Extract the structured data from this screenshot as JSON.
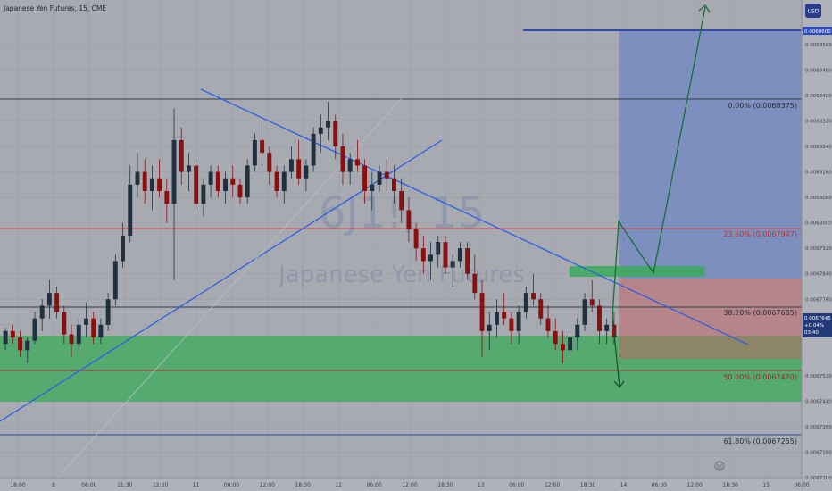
{
  "header": {
    "title": "Japanese Yen Futures, 15, CME",
    "currency_label": "USD"
  },
  "watermark": {
    "symbol": "6J1!, 15",
    "name": "Japanese Yen Futures"
  },
  "colors": {
    "background": "#a8aab2",
    "candle_up": "#20303f",
    "candle_down": "#8a1010",
    "trendline": "#2f5fe0",
    "fib_line": "#2e3a44",
    "green_zone": "#3aaa5a",
    "red_zone": "#c46060",
    "blue_zone": "#5a78c8",
    "projection": "#1e7a40"
  },
  "chart_data": {
    "type": "candlestick",
    "instrument": "Japanese Yen Futures",
    "timeframe": "15",
    "exchange": "CME",
    "ylim": [
      0.00672,
      0.00687
    ],
    "y_ticks": [
      "0.0068560",
      "0.0068480",
      "0.0068400",
      "0.0068320",
      "0.0068240",
      "0.0068160",
      "0.0068080",
      "0.0068000",
      "0.0067920",
      "0.0067840",
      "0.0067760",
      "0.0067680",
      "0.0067520",
      "0.0067440",
      "0.0067360",
      "0.0067280",
      "0.0067200"
    ],
    "x_ticks": [
      "18:00",
      "8",
      "06:00",
      "11:30",
      "12:00",
      "11",
      "06:00",
      "12:00",
      "18:30",
      "12",
      "06:00",
      "12:00",
      "18:30",
      "13",
      "06:00",
      "12:00",
      "18:30",
      "14",
      "06:00",
      "12:00",
      "18:30",
      "15",
      "06:00"
    ],
    "current_price": {
      "value": "0.0067645",
      "change": "+0.04%",
      "countdown": "03:40"
    },
    "target_price": "0.0068600",
    "fib_levels": [
      {
        "label": "0.00% (0.0068375)",
        "value": 0.0068375
      },
      {
        "label": "38.20% (0.0067685)",
        "value": 0.0067685
      },
      {
        "label": "50.00% (0.0067470)",
        "value": 0.006747
      },
      {
        "label": "61.80% (0.0067255)",
        "value": 0.0067255
      }
    ],
    "red_level": {
      "label": "23.60% (0.0067947)",
      "value": 0.0067947
    },
    "candles": [
      [
        0.006762,
        0.006767,
        0.00676,
        0.006766
      ],
      [
        0.006766,
        0.006768,
        0.006762,
        0.006764
      ],
      [
        0.006764,
        0.006766,
        0.006758,
        0.00676
      ],
      [
        0.00676,
        0.006764,
        0.006756,
        0.006763
      ],
      [
        0.006763,
        0.006772,
        0.006762,
        0.00677
      ],
      [
        0.00677,
        0.006776,
        0.006766,
        0.006774
      ],
      [
        0.006774,
        0.006782,
        0.00677,
        0.006778
      ],
      [
        0.006778,
        0.00678,
        0.00677,
        0.006772
      ],
      [
        0.006772,
        0.006774,
        0.006762,
        0.006765
      ],
      [
        0.006765,
        0.006768,
        0.006758,
        0.006762
      ],
      [
        0.006762,
        0.00677,
        0.00676,
        0.006768
      ],
      [
        0.006768,
        0.006775,
        0.006764,
        0.00677
      ],
      [
        0.00677,
        0.006772,
        0.006762,
        0.006764
      ],
      [
        0.006764,
        0.00677,
        0.006762,
        0.006768
      ],
      [
        0.006768,
        0.006778,
        0.006766,
        0.006776
      ],
      [
        0.006776,
        0.00679,
        0.006774,
        0.006788
      ],
      [
        0.006788,
        0.0068,
        0.006786,
        0.006796
      ],
      [
        0.006796,
        0.006818,
        0.006794,
        0.006812
      ],
      [
        0.006812,
        0.006822,
        0.006808,
        0.006816
      ],
      [
        0.006816,
        0.00682,
        0.006806,
        0.00681
      ],
      [
        0.00681,
        0.006818,
        0.006804,
        0.006814
      ],
      [
        0.006814,
        0.00682,
        0.006808,
        0.00681
      ],
      [
        0.00681,
        0.006814,
        0.0068,
        0.006806
      ],
      [
        0.006806,
        0.006836,
        0.006782,
        0.006826
      ],
      [
        0.006826,
        0.00683,
        0.006812,
        0.006816
      ],
      [
        0.006816,
        0.006822,
        0.00681,
        0.006818
      ],
      [
        0.006818,
        0.00682,
        0.006804,
        0.006806
      ],
      [
        0.006806,
        0.006814,
        0.006802,
        0.006812
      ],
      [
        0.006812,
        0.006818,
        0.006808,
        0.006816
      ],
      [
        0.006816,
        0.006818,
        0.006808,
        0.00681
      ],
      [
        0.00681,
        0.006816,
        0.006806,
        0.006814
      ],
      [
        0.006814,
        0.006818,
        0.006808,
        0.006812
      ],
      [
        0.006812,
        0.006814,
        0.006806,
        0.006808
      ],
      [
        0.006808,
        0.00682,
        0.006806,
        0.006818
      ],
      [
        0.006818,
        0.006828,
        0.006816,
        0.006826
      ],
      [
        0.006826,
        0.006832,
        0.006818,
        0.006822
      ],
      [
        0.006822,
        0.006824,
        0.006812,
        0.006816
      ],
      [
        0.006816,
        0.006818,
        0.006808,
        0.00681
      ],
      [
        0.00681,
        0.006818,
        0.006806,
        0.006816
      ],
      [
        0.006816,
        0.006824,
        0.006814,
        0.00682
      ],
      [
        0.00682,
        0.006826,
        0.006812,
        0.006814
      ],
      [
        0.006814,
        0.00682,
        0.00681,
        0.006818
      ],
      [
        0.006818,
        0.00683,
        0.006816,
        0.006828
      ],
      [
        0.006828,
        0.006834,
        0.006822,
        0.00683
      ],
      [
        0.00683,
        0.006838,
        0.006826,
        0.006832
      ],
      [
        0.006832,
        0.006834,
        0.00682,
        0.006824
      ],
      [
        0.006824,
        0.006828,
        0.006812,
        0.006816
      ],
      [
        0.006816,
        0.006822,
        0.006812,
        0.00682
      ],
      [
        0.00682,
        0.006826,
        0.006816,
        0.006818
      ],
      [
        0.006818,
        0.00682,
        0.006806,
        0.00681
      ],
      [
        0.00681,
        0.006816,
        0.006804,
        0.006812
      ],
      [
        0.006812,
        0.006818,
        0.00681,
        0.006816
      ],
      [
        0.006816,
        0.00682,
        0.00681,
        0.006814
      ],
      [
        0.006814,
        0.006818,
        0.006806,
        0.00681
      ],
      [
        0.00681,
        0.006814,
        0.0068,
        0.006804
      ],
      [
        0.006804,
        0.006808,
        0.006794,
        0.006798
      ],
      [
        0.006798,
        0.0068,
        0.006788,
        0.006792
      ],
      [
        0.006792,
        0.006796,
        0.006784,
        0.006788
      ],
      [
        0.006788,
        0.006794,
        0.006782,
        0.00679
      ],
      [
        0.00679,
        0.006796,
        0.006786,
        0.006794
      ],
      [
        0.006794,
        0.006796,
        0.006784,
        0.006786
      ],
      [
        0.006786,
        0.00679,
        0.00678,
        0.006788
      ],
      [
        0.006788,
        0.006794,
        0.006786,
        0.006792
      ],
      [
        0.006792,
        0.006794,
        0.006782,
        0.006784
      ],
      [
        0.006784,
        0.00679,
        0.006776,
        0.006778
      ],
      [
        0.006778,
        0.006782,
        0.006758,
        0.006766
      ],
      [
        0.006766,
        0.006772,
        0.00676,
        0.006768
      ],
      [
        0.006768,
        0.006776,
        0.006764,
        0.006772
      ],
      [
        0.006772,
        0.006778,
        0.006768,
        0.00677
      ],
      [
        0.00677,
        0.006772,
        0.006762,
        0.006766
      ],
      [
        0.006766,
        0.006774,
        0.006762,
        0.006772
      ],
      [
        0.006772,
        0.00678,
        0.00677,
        0.006778
      ],
      [
        0.006778,
        0.006784,
        0.006774,
        0.006776
      ],
      [
        0.006776,
        0.006778,
        0.006768,
        0.00677
      ],
      [
        0.00677,
        0.006774,
        0.006764,
        0.006766
      ],
      [
        0.006766,
        0.00677,
        0.00676,
        0.006762
      ],
      [
        0.006762,
        0.006766,
        0.006756,
        0.00676
      ],
      [
        0.00676,
        0.006766,
        0.006758,
        0.006764
      ],
      [
        0.006764,
        0.00677,
        0.00676,
        0.006768
      ],
      [
        0.006768,
        0.006778,
        0.006766,
        0.006776
      ],
      [
        0.006776,
        0.006782,
        0.006772,
        0.006774
      ],
      [
        0.006774,
        0.006776,
        0.006762,
        0.006766
      ],
      [
        0.006766,
        0.00677,
        0.006762,
        0.006768
      ],
      [
        0.006768,
        0.006772,
        0.006762,
        0.006764
      ]
    ]
  }
}
